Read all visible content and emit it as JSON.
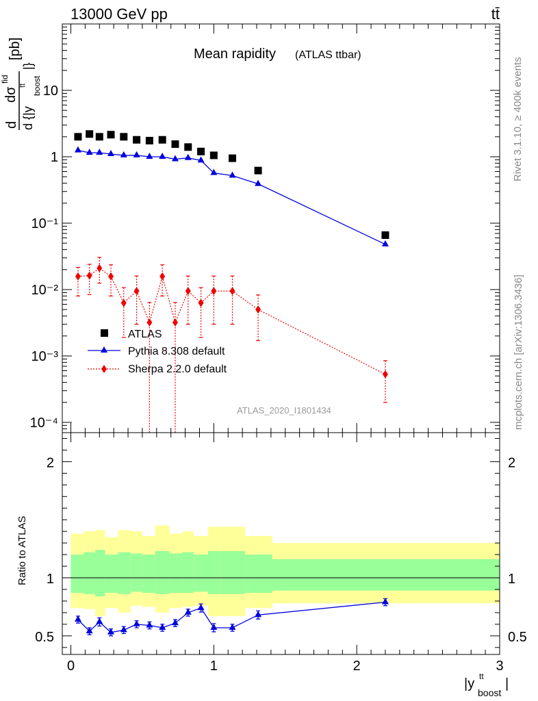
{
  "header": {
    "energy_label": "13000 GeV pp",
    "process_label": "tt̄"
  },
  "side_labels": {
    "rivet": "Rivet 3.1.10, ≥ 400k events",
    "mcplots": "mcplots.cern.ch [arXiv:1306.3436]"
  },
  "chart_data": [
    {
      "type": "scatter",
      "panel": "main",
      "title": "Mean rapidity",
      "subtitle": "(ATLAS ttbar)",
      "analysis_tag": "ATLAS_2020_I1801434",
      "xlabel": "|y",
      "xlabel_sup": "tt",
      "xlabel_sub": "boost",
      "xlabel_end": "|",
      "ylabel_prefix": "d",
      "ylabel_num": "dσ",
      "ylabel_num_sup": "fid",
      "ylabel_den": "d {|y",
      "ylabel_den_sup": "tt",
      "ylabel_den_sub": "boost",
      "ylabel_den_end": "|}",
      "ylabel_unit": "[pb]",
      "log_y": true,
      "xlim": [
        -0.06,
        3.0
      ],
      "ylim": [
        7e-05,
        100
      ],
      "y_tick_labels": [
        "10⁻⁴",
        "10⁻³",
        "10⁻²",
        "10⁻¹",
        "1",
        "10"
      ],
      "x_tick_labels": [
        "0",
        "1",
        "2",
        "3"
      ],
      "legend_position": "lower-left",
      "series": [
        {
          "name": "ATLAS",
          "color": "#000000",
          "marker": "square",
          "x": [
            0.05,
            0.13,
            0.2,
            0.28,
            0.37,
            0.46,
            0.55,
            0.64,
            0.73,
            0.82,
            0.91,
            1.0,
            1.13,
            1.31,
            2.2
          ],
          "y": [
            2.0,
            2.2,
            2.0,
            2.15,
            2.0,
            1.8,
            1.75,
            1.8,
            1.55,
            1.4,
            1.2,
            1.05,
            0.95,
            0.62,
            0.066
          ]
        },
        {
          "name": "Pythia 8.308 default",
          "color": "#0000dd",
          "marker": "triangle",
          "x": [
            0.05,
            0.13,
            0.2,
            0.28,
            0.37,
            0.46,
            0.55,
            0.64,
            0.73,
            0.82,
            0.91,
            1.0,
            1.13,
            1.31,
            2.2
          ],
          "y": [
            1.25,
            1.15,
            1.15,
            1.1,
            1.05,
            1.05,
            1.0,
            1.0,
            0.92,
            0.96,
            0.88,
            0.57,
            0.52,
            0.39,
            0.048
          ]
        },
        {
          "name": "Sherpa 2.2.0 default",
          "color": "#ee0000",
          "marker": "diamond",
          "x": [
            0.05,
            0.13,
            0.2,
            0.28,
            0.37,
            0.46,
            0.55,
            0.64,
            0.73,
            0.82,
            0.91,
            1.0,
            1.13,
            1.31,
            2.2
          ],
          "y": [
            0.0158,
            0.0162,
            0.021,
            0.0158,
            0.0063,
            0.0095,
            0.0032,
            0.0158,
            0.0032,
            0.0095,
            0.0063,
            0.0095,
            0.0095,
            0.005,
            0.00053
          ],
          "y_err_low": [
            0.0078,
            0.0078,
            0.0085,
            0.0078,
            0.0044,
            0.0065,
            0.0032,
            0.0078,
            0.0032,
            0.0065,
            0.0044,
            0.0065,
            0.0065,
            0.0033,
            0.00033
          ],
          "y_err_high": [
            0.0058,
            0.0078,
            0.0095,
            0.0078,
            0.0044,
            0.0065,
            0.0032,
            0.0078,
            0.0032,
            0.0065,
            0.0044,
            0.0065,
            0.0065,
            0.0033,
            0.00032
          ]
        }
      ]
    },
    {
      "type": "line",
      "panel": "ratio",
      "ylabel": "Ratio to ATLAS",
      "xlim": [
        -0.06,
        3.0
      ],
      "ylim": [
        0.34,
        2.25
      ],
      "y_tick_labels": [
        "0.5",
        "1",
        "2"
      ],
      "x_tick_labels": [
        "0",
        "1",
        "2",
        "3"
      ],
      "bands": {
        "bin_edges": [
          0.0,
          0.09,
          0.17,
          0.24,
          0.33,
          0.42,
          0.5,
          0.59,
          0.69,
          0.78,
          0.86,
          0.96,
          1.05,
          1.22,
          1.41,
          3.0
        ],
        "yellow_low": [
          0.74,
          0.73,
          0.67,
          0.74,
          0.7,
          0.76,
          0.75,
          0.7,
          0.74,
          0.75,
          0.76,
          0.67,
          0.67,
          0.74,
          0.78
        ],
        "yellow_high": [
          1.38,
          1.4,
          1.41,
          1.35,
          1.41,
          1.4,
          1.36,
          1.45,
          1.38,
          1.4,
          1.36,
          1.44,
          1.44,
          1.36,
          1.3
        ],
        "green_low": [
          0.87,
          0.86,
          0.84,
          0.87,
          0.86,
          0.88,
          0.87,
          0.86,
          0.87,
          0.87,
          0.88,
          0.86,
          0.86,
          0.87,
          0.89
        ],
        "green_high": [
          1.2,
          1.22,
          1.24,
          1.2,
          1.22,
          1.21,
          1.2,
          1.23,
          1.21,
          1.22,
          1.2,
          1.23,
          1.23,
          1.2,
          1.16
        ]
      },
      "series": [
        {
          "name": "Pythia 8.308 default",
          "color": "#0000dd",
          "marker": "triangle",
          "x": [
            0.05,
            0.13,
            0.2,
            0.28,
            0.37,
            0.46,
            0.55,
            0.64,
            0.73,
            0.82,
            0.91,
            1.0,
            1.13,
            1.31,
            2.2
          ],
          "y": [
            0.64,
            0.54,
            0.62,
            0.53,
            0.55,
            0.6,
            0.59,
            0.57,
            0.61,
            0.7,
            0.74,
            0.57,
            0.57,
            0.68,
            0.79
          ],
          "err": [
            0.03,
            0.03,
            0.035,
            0.03,
            0.03,
            0.03,
            0.03,
            0.03,
            0.03,
            0.03,
            0.035,
            0.035,
            0.03,
            0.035,
            0.03
          ]
        }
      ]
    }
  ]
}
